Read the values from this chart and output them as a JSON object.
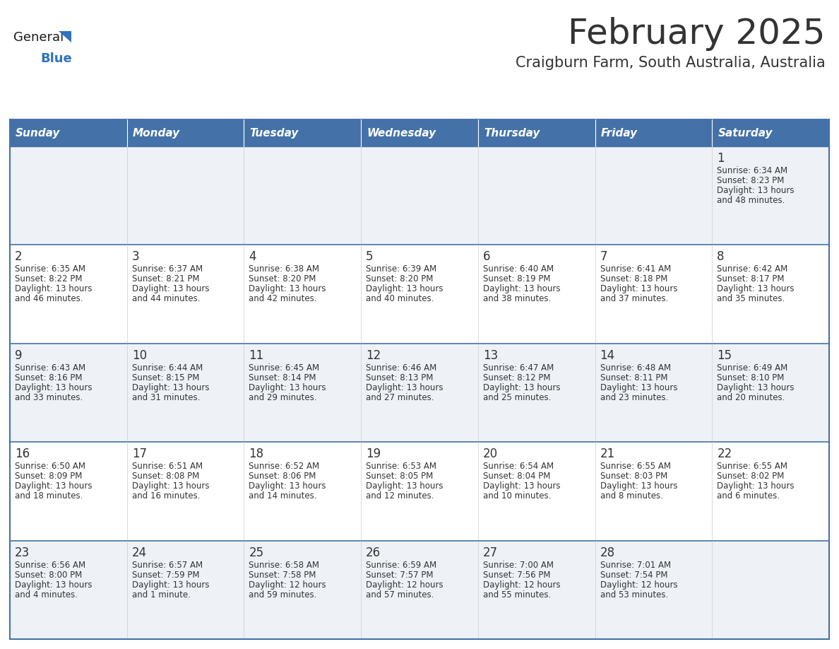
{
  "title": "February 2025",
  "subtitle": "Craigburn Farm, South Australia, Australia",
  "header_bg": "#4472a8",
  "header_text": "#ffffff",
  "cell_bg_odd": "#eef2f7",
  "cell_bg_even": "#ffffff",
  "border_color": "#4472a8",
  "text_color": "#333333",
  "days_of_week": [
    "Sunday",
    "Monday",
    "Tuesday",
    "Wednesday",
    "Thursday",
    "Friday",
    "Saturday"
  ],
  "logo_general_color": "#1a1a1a",
  "logo_blue_color": "#2e74c0",
  "calendar_data": [
    [
      null,
      null,
      null,
      null,
      null,
      null,
      {
        "day": "1",
        "sunrise": "6:34 AM",
        "sunset": "8:23 PM",
        "daylight_line1": "Daylight: 13 hours",
        "daylight_line2": "and 48 minutes."
      }
    ],
    [
      {
        "day": "2",
        "sunrise": "6:35 AM",
        "sunset": "8:22 PM",
        "daylight_line1": "Daylight: 13 hours",
        "daylight_line2": "and 46 minutes."
      },
      {
        "day": "3",
        "sunrise": "6:37 AM",
        "sunset": "8:21 PM",
        "daylight_line1": "Daylight: 13 hours",
        "daylight_line2": "and 44 minutes."
      },
      {
        "day": "4",
        "sunrise": "6:38 AM",
        "sunset": "8:20 PM",
        "daylight_line1": "Daylight: 13 hours",
        "daylight_line2": "and 42 minutes."
      },
      {
        "day": "5",
        "sunrise": "6:39 AM",
        "sunset": "8:20 PM",
        "daylight_line1": "Daylight: 13 hours",
        "daylight_line2": "and 40 minutes."
      },
      {
        "day": "6",
        "sunrise": "6:40 AM",
        "sunset": "8:19 PM",
        "daylight_line1": "Daylight: 13 hours",
        "daylight_line2": "and 38 minutes."
      },
      {
        "day": "7",
        "sunrise": "6:41 AM",
        "sunset": "8:18 PM",
        "daylight_line1": "Daylight: 13 hours",
        "daylight_line2": "and 37 minutes."
      },
      {
        "day": "8",
        "sunrise": "6:42 AM",
        "sunset": "8:17 PM",
        "daylight_line1": "Daylight: 13 hours",
        "daylight_line2": "and 35 minutes."
      }
    ],
    [
      {
        "day": "9",
        "sunrise": "6:43 AM",
        "sunset": "8:16 PM",
        "daylight_line1": "Daylight: 13 hours",
        "daylight_line2": "and 33 minutes."
      },
      {
        "day": "10",
        "sunrise": "6:44 AM",
        "sunset": "8:15 PM",
        "daylight_line1": "Daylight: 13 hours",
        "daylight_line2": "and 31 minutes."
      },
      {
        "day": "11",
        "sunrise": "6:45 AM",
        "sunset": "8:14 PM",
        "daylight_line1": "Daylight: 13 hours",
        "daylight_line2": "and 29 minutes."
      },
      {
        "day": "12",
        "sunrise": "6:46 AM",
        "sunset": "8:13 PM",
        "daylight_line1": "Daylight: 13 hours",
        "daylight_line2": "and 27 minutes."
      },
      {
        "day": "13",
        "sunrise": "6:47 AM",
        "sunset": "8:12 PM",
        "daylight_line1": "Daylight: 13 hours",
        "daylight_line2": "and 25 minutes."
      },
      {
        "day": "14",
        "sunrise": "6:48 AM",
        "sunset": "8:11 PM",
        "daylight_line1": "Daylight: 13 hours",
        "daylight_line2": "and 23 minutes."
      },
      {
        "day": "15",
        "sunrise": "6:49 AM",
        "sunset": "8:10 PM",
        "daylight_line1": "Daylight: 13 hours",
        "daylight_line2": "and 20 minutes."
      }
    ],
    [
      {
        "day": "16",
        "sunrise": "6:50 AM",
        "sunset": "8:09 PM",
        "daylight_line1": "Daylight: 13 hours",
        "daylight_line2": "and 18 minutes."
      },
      {
        "day": "17",
        "sunrise": "6:51 AM",
        "sunset": "8:08 PM",
        "daylight_line1": "Daylight: 13 hours",
        "daylight_line2": "and 16 minutes."
      },
      {
        "day": "18",
        "sunrise": "6:52 AM",
        "sunset": "8:06 PM",
        "daylight_line1": "Daylight: 13 hours",
        "daylight_line2": "and 14 minutes."
      },
      {
        "day": "19",
        "sunrise": "6:53 AM",
        "sunset": "8:05 PM",
        "daylight_line1": "Daylight: 13 hours",
        "daylight_line2": "and 12 minutes."
      },
      {
        "day": "20",
        "sunrise": "6:54 AM",
        "sunset": "8:04 PM",
        "daylight_line1": "Daylight: 13 hours",
        "daylight_line2": "and 10 minutes."
      },
      {
        "day": "21",
        "sunrise": "6:55 AM",
        "sunset": "8:03 PM",
        "daylight_line1": "Daylight: 13 hours",
        "daylight_line2": "and 8 minutes."
      },
      {
        "day": "22",
        "sunrise": "6:55 AM",
        "sunset": "8:02 PM",
        "daylight_line1": "Daylight: 13 hours",
        "daylight_line2": "and 6 minutes."
      }
    ],
    [
      {
        "day": "23",
        "sunrise": "6:56 AM",
        "sunset": "8:00 PM",
        "daylight_line1": "Daylight: 13 hours",
        "daylight_line2": "and 4 minutes."
      },
      {
        "day": "24",
        "sunrise": "6:57 AM",
        "sunset": "7:59 PM",
        "daylight_line1": "Daylight: 13 hours",
        "daylight_line2": "and 1 minute."
      },
      {
        "day": "25",
        "sunrise": "6:58 AM",
        "sunset": "7:58 PM",
        "daylight_line1": "Daylight: 12 hours",
        "daylight_line2": "and 59 minutes."
      },
      {
        "day": "26",
        "sunrise": "6:59 AM",
        "sunset": "7:57 PM",
        "daylight_line1": "Daylight: 12 hours",
        "daylight_line2": "and 57 minutes."
      },
      {
        "day": "27",
        "sunrise": "7:00 AM",
        "sunset": "7:56 PM",
        "daylight_line1": "Daylight: 12 hours",
        "daylight_line2": "and 55 minutes."
      },
      {
        "day": "28",
        "sunrise": "7:01 AM",
        "sunset": "7:54 PM",
        "daylight_line1": "Daylight: 12 hours",
        "daylight_line2": "and 53 minutes."
      },
      null
    ]
  ]
}
